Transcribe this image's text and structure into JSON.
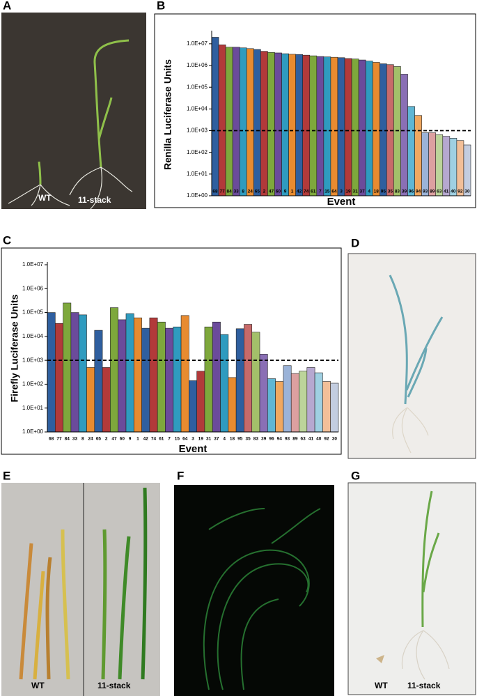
{
  "panels": {
    "A": {
      "label": "A",
      "texts": [
        "WT",
        "11-stack"
      ]
    },
    "B": {
      "label": "B"
    },
    "C": {
      "label": "C"
    },
    "D": {
      "label": "D"
    },
    "E": {
      "label": "E",
      "texts": [
        "WT",
        "11-stack"
      ]
    },
    "F": {
      "label": "F"
    },
    "G": {
      "label": "G",
      "texts": [
        "WT",
        "11-stack"
      ]
    }
  },
  "chart_data": [
    {
      "type": "bar",
      "y_label": "Renilla Luciferase Units",
      "x_label": "Event",
      "log_scale": true,
      "categories": [
        "68",
        "77",
        "84",
        "33",
        "8",
        "24",
        "65",
        "2",
        "47",
        "60",
        "9",
        "1",
        "42",
        "74",
        "61",
        "7",
        "15",
        "64",
        "3",
        "19",
        "31",
        "37",
        "4",
        "18",
        "95",
        "35",
        "83",
        "39",
        "96",
        "94",
        "93",
        "89",
        "63",
        "41",
        "40",
        "92",
        "30"
      ],
      "values": [
        20000000,
        9000000,
        7000000,
        7000000,
        6500000,
        6000000,
        5500000,
        4500000,
        4000000,
        3800000,
        3500000,
        3300000,
        3200000,
        3000000,
        2800000,
        2600000,
        2500000,
        2400000,
        2300000,
        2100000,
        2000000,
        1800000,
        1600000,
        1400000,
        1200000,
        1100000,
        900000,
        400000,
        13000,
        5000,
        800,
        800,
        650,
        550,
        450,
        350,
        220
      ],
      "palette": [
        "#2f5f9f",
        "#b23a3a",
        "#7ea83c",
        "#6b4b9b",
        "#2f9bbf",
        "#e88b30",
        "#2f5f9f",
        "#b23a3a",
        "#7ea83c",
        "#6b4b9b",
        "#2f9bbf",
        "#e88b30",
        "#2f5f9f",
        "#b23a3a",
        "#7ea83c",
        "#6b4b9b",
        "#2f9bbf",
        "#e88b30",
        "#2f5f9f",
        "#b23a3a",
        "#7ea83c",
        "#6b4b9b",
        "#2f9bbf",
        "#e88b30",
        "#2f5f9f",
        "#c86a6a",
        "#a3c06a",
        "#8a6fb5",
        "#5fb6d4",
        "#f0a860",
        "#9bb3d8",
        "#dca0a0",
        "#bcd49a",
        "#b6a8d0",
        "#9fd0e2",
        "#f2bf98",
        "#c3cde0"
      ],
      "reference_line": 1000,
      "ylim": [
        1,
        30000000
      ],
      "yticks": [
        {
          "value": 1,
          "label": "1.0E+00"
        },
        {
          "value": 10,
          "label": "1.0E+01"
        },
        {
          "value": 100,
          "label": "1.0E+02"
        },
        {
          "value": 1000,
          "label": "1.0E+03"
        },
        {
          "value": 10000,
          "label": "1.0E+04"
        },
        {
          "value": 100000,
          "label": "1.0E+05"
        },
        {
          "value": 1000000,
          "label": "1.0E+06"
        },
        {
          "value": 10000000,
          "label": "1.0E+07"
        }
      ]
    },
    {
      "type": "bar",
      "y_label": "Firefly Luciferase Units",
      "x_label": "Event",
      "log_scale": true,
      "categories": [
        "68",
        "77",
        "84",
        "33",
        "8",
        "24",
        "65",
        "2",
        "47",
        "60",
        "9",
        "1",
        "42",
        "74",
        "61",
        "7",
        "15",
        "64",
        "3",
        "19",
        "31",
        "37",
        "4",
        "18",
        "95",
        "35",
        "83",
        "39",
        "96",
        "94",
        "93",
        "89",
        "63",
        "41",
        "40",
        "92",
        "30"
      ],
      "values": [
        100000,
        35000,
        250000,
        100000,
        80000,
        500,
        18000,
        500,
        160000,
        50000,
        90000,
        60000,
        22000,
        60000,
        40000,
        22000,
        25000,
        75000,
        140,
        350,
        25000,
        40000,
        12000,
        190,
        21000,
        32000,
        15000,
        1800,
        170,
        130,
        600,
        280,
        350,
        500,
        300,
        130,
        110
      ],
      "palette": [
        "#2f5f9f",
        "#b23a3a",
        "#7ea83c",
        "#6b4b9b",
        "#2f9bbf",
        "#e88b30",
        "#2f5f9f",
        "#b23a3a",
        "#7ea83c",
        "#6b4b9b",
        "#2f9bbf",
        "#e88b30",
        "#2f5f9f",
        "#b23a3a",
        "#7ea83c",
        "#6b4b9b",
        "#2f9bbf",
        "#e88b30",
        "#2f5f9f",
        "#b23a3a",
        "#7ea83c",
        "#6b4b9b",
        "#2f9bbf",
        "#e88b30",
        "#2f5f9f",
        "#c86a6a",
        "#a3c06a",
        "#8a6fb5",
        "#5fb6d4",
        "#f0a860",
        "#9bb3d8",
        "#dca0a0",
        "#bcd49a",
        "#b6a8d0",
        "#9fd0e2",
        "#f2bf98",
        "#c3cde0"
      ],
      "reference_line": 1000,
      "ylim": [
        1,
        10000000
      ],
      "yticks": [
        {
          "value": 1,
          "label": "1.0E+00"
        },
        {
          "value": 10,
          "label": "1.0E+01"
        },
        {
          "value": 100,
          "label": "1.0E+02"
        },
        {
          "value": 1000,
          "label": "1.0E+03"
        },
        {
          "value": 10000,
          "label": "1.0E+04"
        },
        {
          "value": 100000,
          "label": "1.0E+05"
        },
        {
          "value": 1000000,
          "label": "1.0E+06"
        },
        {
          "value": 10000000,
          "label": "1.0E+07"
        }
      ]
    }
  ]
}
